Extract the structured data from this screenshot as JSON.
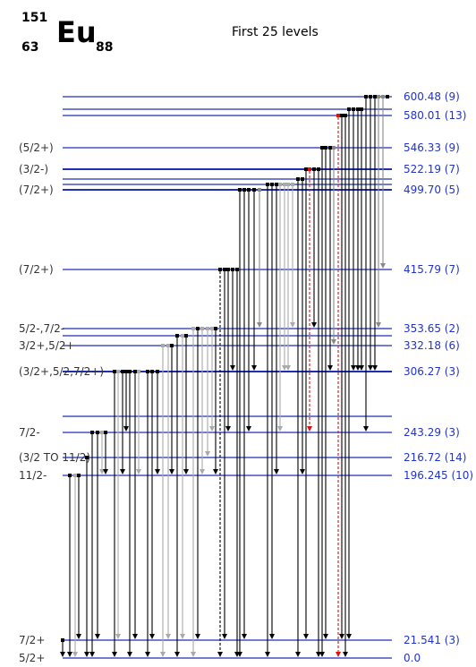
{
  "header": {
    "mass_number": "151",
    "element": "Eu",
    "atomic_number": "63",
    "neutron_number": "88",
    "title": "First 25 levels"
  },
  "colors": {
    "level_line": "#1f2fb4",
    "energy_text": "#2233cc",
    "spin_text": "#333333",
    "gamma_strong": "#000000",
    "gamma_weak": "#aaaaaa",
    "gamma_medium": "#888888",
    "gamma_special": "#dd1111"
  },
  "levels": [
    {
      "spin": "",
      "energy": "600.48 (9)"
    },
    {
      "spin": "",
      "energy": ""
    },
    {
      "spin": "",
      "energy": "580.01 (13)"
    },
    {
      "spin": "(5/2+)",
      "energy": "546.33 (9)"
    },
    {
      "spin": "(3/2-)",
      "energy": "522.19 (7)"
    },
    {
      "spin": "",
      "energy": ""
    },
    {
      "spin": "",
      "energy": ""
    },
    {
      "spin": "(7/2+)",
      "energy": "499.70 (5)"
    },
    {
      "spin": "(7/2+)",
      "energy": "415.79 (7)"
    },
    {
      "spin": "5/2-,7/2-",
      "energy": "353.65 (2)"
    },
    {
      "spin": "",
      "energy": ""
    },
    {
      "spin": "3/2+,5/2+",
      "energy": "332.18 (6)"
    },
    {
      "spin": "(3/2+,5/2,7/2+)",
      "energy": "306.27 (3)"
    },
    {
      "spin": "",
      "energy": ""
    },
    {
      "spin": "7/2-",
      "energy": "243.29 (3)"
    },
    {
      "spin": "(3/2 TO 11/2)",
      "energy": "216.72 (14)"
    },
    {
      "spin": "11/2-",
      "energy": "196.245 (10)"
    },
    {
      "spin": "7/2+",
      "energy": "21.541 (3)"
    },
    {
      "spin": "5/2+",
      "energy": "0.0"
    }
  ]
}
